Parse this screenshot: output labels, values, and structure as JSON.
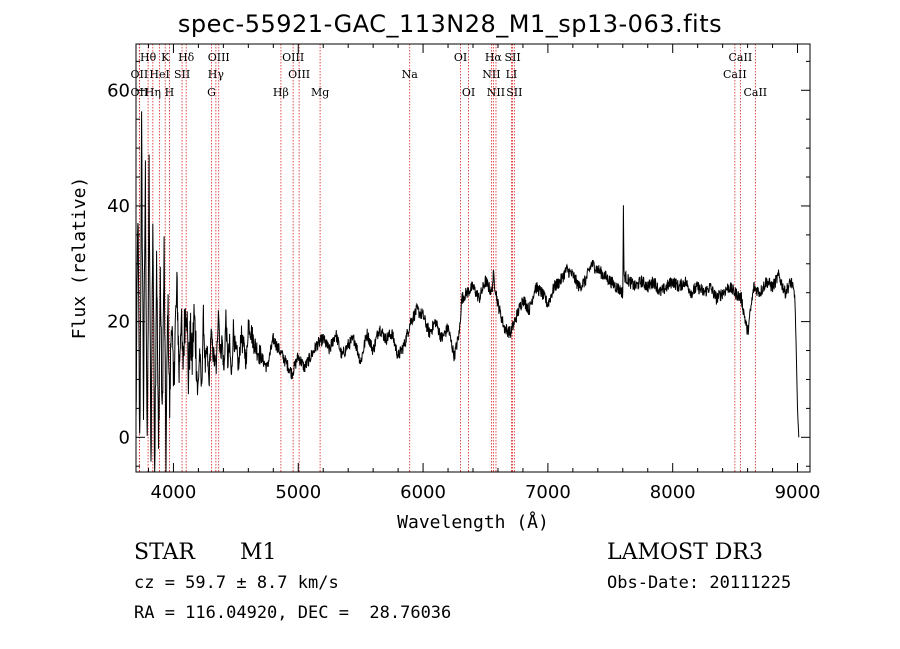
{
  "chart_data": {
    "type": "line",
    "title": "spec-55921-GAC_113N28_M1_sp13-063.fits",
    "xlabel": "Wavelength (Å)",
    "ylabel": "Flux (relative)",
    "xlim": [
      3700,
      9100
    ],
    "ylim": [
      -6,
      68
    ],
    "xticks": [
      "4000",
      "5000",
      "6000",
      "7000",
      "8000",
      "9000"
    ],
    "yticks": [
      "0",
      "20",
      "40",
      "60"
    ],
    "xtick_values": [
      4000,
      5000,
      6000,
      7000,
      8000,
      9000
    ],
    "ytick_values": [
      0,
      20,
      40,
      60
    ],
    "spectral_lines": [
      {
        "label": "Hθ",
        "wavelength": 3797,
        "row": 0
      },
      {
        "label": "OII",
        "wavelength": 3727,
        "row": 1
      },
      {
        "label": "OII",
        "wavelength": 3727,
        "row": 2
      },
      {
        "label": "Hη",
        "wavelength": 3835,
        "row": 2
      },
      {
        "label": "K",
        "wavelength": 3934,
        "row": 0
      },
      {
        "label": "HeI",
        "wavelength": 3889,
        "row": 1
      },
      {
        "label": "H",
        "wavelength": 3968,
        "row": 2
      },
      {
        "label": "Hδ",
        "wavelength": 4102,
        "row": 0
      },
      {
        "label": "SII",
        "wavelength": 4069,
        "row": 1
      },
      {
        "label": "OIII",
        "wavelength": 4363,
        "row": 0
      },
      {
        "label": "Hγ",
        "wavelength": 4340,
        "row": 1
      },
      {
        "label": "G",
        "wavelength": 4305,
        "row": 2
      },
      {
        "label": "OIII",
        "wavelength": 4959,
        "row": 0
      },
      {
        "label": "OIII",
        "wavelength": 5007,
        "row": 1
      },
      {
        "label": "Hβ",
        "wavelength": 4861,
        "row": 2
      },
      {
        "label": "Mg",
        "wavelength": 5175,
        "row": 2
      },
      {
        "label": "Na",
        "wavelength": 5893,
        "row": 1
      },
      {
        "label": "OI",
        "wavelength": 6300,
        "row": 0
      },
      {
        "label": "OI",
        "wavelength": 6364,
        "row": 2
      },
      {
        "label": "Hα",
        "wavelength": 6563,
        "row": 0
      },
      {
        "label": "NII",
        "wavelength": 6548,
        "row": 1
      },
      {
        "label": "NII",
        "wavelength": 6584,
        "row": 2
      },
      {
        "label": "SII",
        "wavelength": 6717,
        "row": 0
      },
      {
        "label": "LI",
        "wavelength": 6708,
        "row": 1
      },
      {
        "label": "SII",
        "wavelength": 6731,
        "row": 2
      },
      {
        "label": "CaII",
        "wavelength": 8542,
        "row": 0
      },
      {
        "label": "CaII",
        "wavelength": 8498,
        "row": 1
      },
      {
        "label": "CaII",
        "wavelength": 8662,
        "row": 2
      }
    ],
    "series": [
      {
        "name": "flux",
        "x": [
          3700,
          3715,
          3730,
          3745,
          3760,
          3775,
          3790,
          3805,
          3820,
          3835,
          3850,
          3865,
          3880,
          3895,
          3910,
          3925,
          3940,
          3955,
          3970,
          3985,
          4000,
          4015,
          4030,
          4045,
          4060,
          4075,
          4090,
          4105,
          4120,
          4135,
          4150,
          4165,
          4180,
          4195,
          4210,
          4225,
          4240,
          4255,
          4270,
          4285,
          4300,
          4315,
          4330,
          4345,
          4360,
          4375,
          4390,
          4405,
          4420,
          4435,
          4450,
          4465,
          4480,
          4495,
          4510,
          4525,
          4540,
          4555,
          4570,
          4585,
          4600,
          4650,
          4700,
          4750,
          4800,
          4850,
          4900,
          4950,
          5000,
          5050,
          5100,
          5150,
          5200,
          5250,
          5300,
          5350,
          5400,
          5450,
          5500,
          5550,
          5600,
          5650,
          5700,
          5750,
          5800,
          5850,
          5900,
          5950,
          6000,
          6050,
          6100,
          6150,
          6200,
          6250,
          6290,
          6310,
          6350,
          6400,
          6450,
          6500,
          6550,
          6563,
          6600,
          6650,
          6700,
          6750,
          6800,
          6850,
          6900,
          6950,
          7000,
          7050,
          7100,
          7150,
          7200,
          7250,
          7300,
          7350,
          7400,
          7450,
          7500,
          7550,
          7600,
          7605,
          7610,
          7650,
          7700,
          7750,
          7800,
          7850,
          7900,
          7950,
          8000,
          8050,
          8100,
          8150,
          8200,
          8250,
          8300,
          8350,
          8400,
          8450,
          8500,
          8550,
          8600,
          8650,
          8700,
          8750,
          8800,
          8850,
          8900,
          8950,
          8980,
          9000,
          9010
        ],
        "y": [
          2,
          40,
          -2,
          53,
          5,
          45,
          -4,
          46,
          -5,
          38,
          -6,
          33,
          -3,
          28,
          2,
          32,
          -4,
          24,
          5,
          22,
          8,
          19,
          26,
          11,
          21,
          12,
          20,
          24,
          10,
          18,
          13,
          21,
          16,
          7,
          15,
          8,
          21,
          12,
          15,
          9,
          18,
          15,
          13,
          12,
          23,
          14,
          17,
          11,
          21,
          13,
          16,
          10,
          19,
          15,
          14,
          12,
          18,
          16,
          15,
          13,
          20,
          16,
          14,
          12,
          17,
          15,
          13,
          11,
          14,
          12,
          14,
          16,
          17,
          15,
          18,
          14,
          16,
          17,
          13,
          18,
          15,
          19,
          17,
          18,
          14,
          16,
          20,
          22,
          21,
          18,
          20,
          17,
          19,
          14,
          18,
          24,
          25,
          26,
          24,
          27,
          25,
          28,
          23,
          19,
          18,
          21,
          24,
          22,
          26,
          25,
          23,
          26,
          27,
          29,
          28,
          26,
          27,
          30,
          29,
          28,
          27,
          26,
          25,
          40,
          28,
          27,
          26,
          27,
          26,
          27,
          25,
          26,
          27,
          26,
          27,
          25,
          26,
          25,
          26,
          24,
          25,
          26,
          25,
          24,
          18,
          26,
          25,
          27,
          26,
          28,
          25,
          27,
          24,
          5,
          0
        ]
      }
    ]
  },
  "info": {
    "class_label": "STAR",
    "subclass_label": "M1",
    "survey_label": "LAMOST DR3",
    "cz_text": "cz = 59.7 ± 8.7 km/s",
    "obs_date_text": "Obs-Date: 20111225",
    "coords_text": "RA = 116.04920, DEC =  28.76036"
  }
}
